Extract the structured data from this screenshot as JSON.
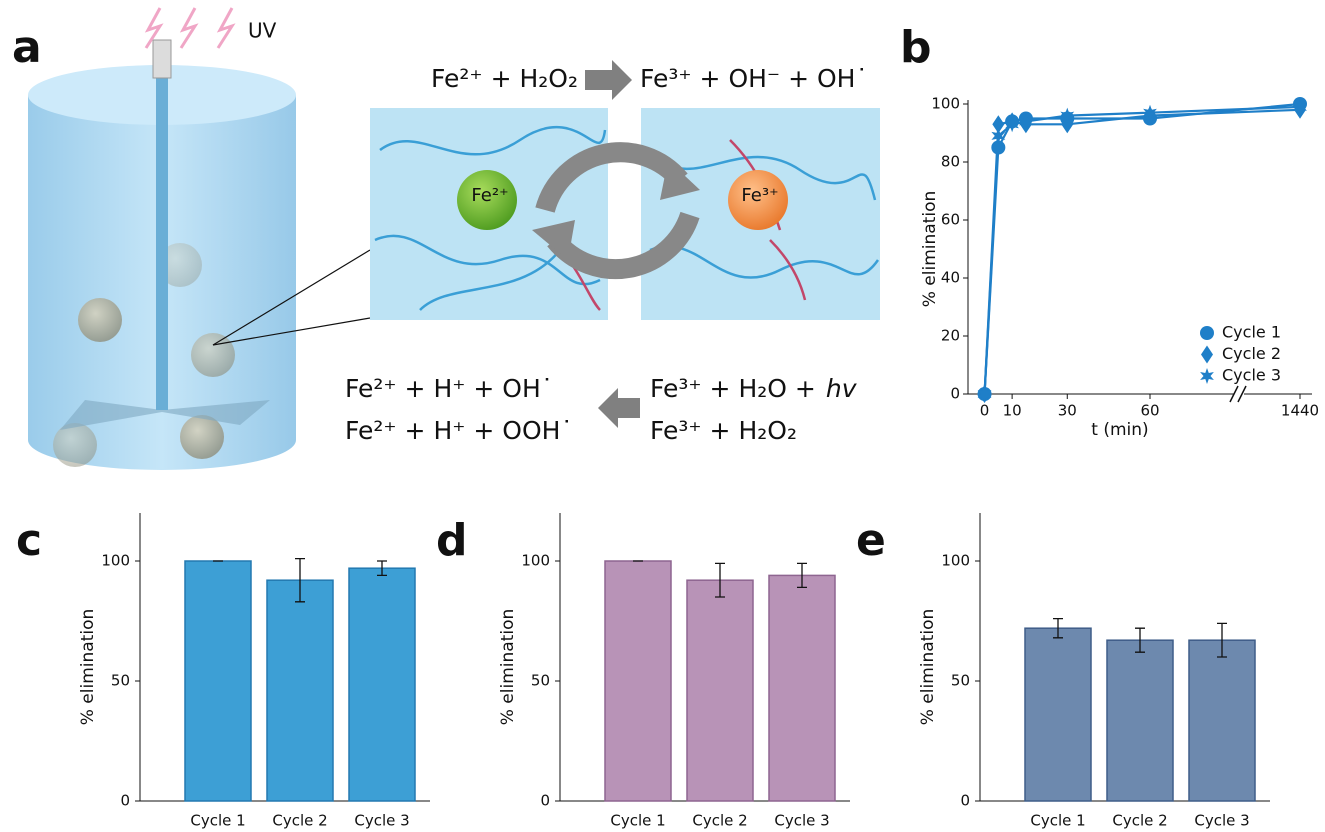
{
  "diagram": {
    "panel": "a",
    "light_label": "UV",
    "top_reaction": {
      "left": "Fe²⁺ + H₂O₂",
      "right": "Fe³⁺ + OH⁻ + OH˙"
    },
    "ion_labels": [
      "Fe²⁺",
      "Fe³⁺"
    ],
    "bottom_reaction": {
      "products": [
        "Fe²⁺ + H⁺ + OH˙",
        "Fe²⁺ + H⁺ + OOH˙"
      ],
      "reactants": [
        "Fe³⁺ + H₂O +",
        "Fe³⁺ + H₂O₂"
      ],
      "photon": "hv"
    }
  },
  "chart_data": [
    {
      "type": "line",
      "panel": "b",
      "y_label": "% elimination",
      "x_label": "t (min)",
      "x": [
        0,
        5,
        10,
        15,
        30,
        60,
        1440
      ],
      "xlim": [
        -6,
        1440
      ],
      "xticks": [
        0,
        10,
        30,
        60,
        1440
      ],
      "axis_break": true,
      "ylim": [
        0,
        100
      ],
      "yticks": [
        0,
        20,
        40,
        60,
        80,
        100
      ],
      "legend": "bottom-right",
      "series": [
        {
          "name": "Cycle 1",
          "color": "#1f7fc8",
          "marker": "circle",
          "values": [
            0,
            85,
            94,
            95,
            95,
            95,
            100
          ]
        },
        {
          "name": "Cycle 2",
          "color": "#1f7fc8",
          "marker": "diamond",
          "values": [
            0,
            93,
            94,
            93,
            93,
            96,
            98
          ]
        },
        {
          "name": "Cycle 3",
          "color": "#1f7fc8",
          "marker": "star",
          "values": [
            0,
            89,
            93,
            94,
            96,
            97,
            99
          ]
        }
      ]
    },
    {
      "type": "bar",
      "panel": "c",
      "y_label": "% elimination",
      "categories": [
        "Cycle 1",
        "Cycle 2",
        "Cycle 3"
      ],
      "values": [
        100,
        92,
        97
      ],
      "errors": [
        0,
        9,
        3
      ],
      "color": "#3d9fd5",
      "edge_color": "#2379b0",
      "ylim": [
        0,
        120
      ],
      "yticks": [
        0,
        50,
        100
      ]
    },
    {
      "type": "bar",
      "panel": "d",
      "y_label": "% elimination",
      "categories": [
        "Cycle 1",
        "Cycle 2",
        "Cycle 3"
      ],
      "values": [
        100,
        92,
        94
      ],
      "errors": [
        0,
        7,
        5
      ],
      "color": "#b893b7",
      "edge_color": "#8e6590",
      "ylim": [
        0,
        120
      ],
      "yticks": [
        0,
        50,
        100
      ]
    },
    {
      "type": "bar",
      "panel": "e",
      "y_label": "% elimination",
      "categories": [
        "Cycle 1",
        "Cycle 2",
        "Cycle 3"
      ],
      "values": [
        72,
        67,
        67
      ],
      "errors": [
        4,
        5,
        7
      ],
      "color": "#6d89ae",
      "edge_color": "#3f5d88",
      "ylim": [
        0,
        120
      ],
      "yticks": [
        0,
        50,
        100
      ]
    }
  ]
}
